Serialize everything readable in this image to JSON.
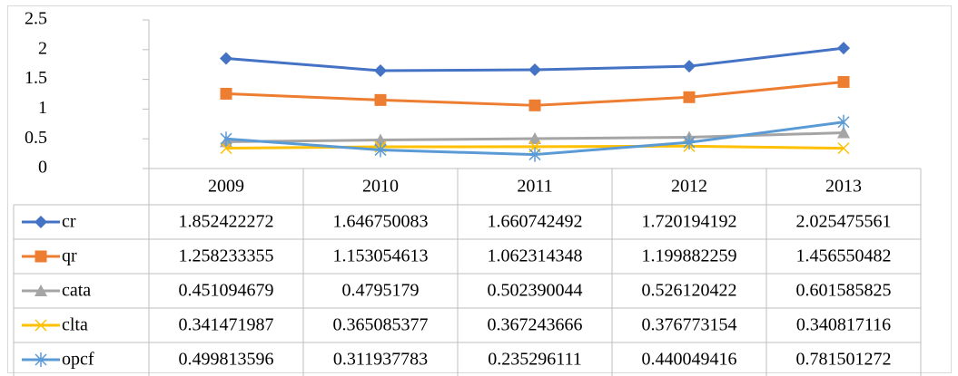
{
  "chart_data": {
    "type": "line",
    "categories": [
      "2009",
      "2010",
      "2011",
      "2012",
      "2013"
    ],
    "series": [
      {
        "name": "cr",
        "color": "#4472c4",
        "marker": "diamond",
        "values": [
          1.852422272,
          1.646750083,
          1.660742492,
          1.720194192,
          2.025475561
        ]
      },
      {
        "name": "qr",
        "color": "#ed7d31",
        "marker": "square",
        "values": [
          1.258233355,
          1.153054613,
          1.062314348,
          1.199882259,
          1.456550482
        ]
      },
      {
        "name": "cata",
        "color": "#a5a5a5",
        "marker": "triangle",
        "values": [
          0.451094679,
          0.4795179,
          0.502390044,
          0.526120422,
          0.601585825
        ]
      },
      {
        "name": "clta",
        "color": "#ffc000",
        "marker": "x",
        "values": [
          0.341471987,
          0.365085377,
          0.367243666,
          0.376773154,
          0.340817116
        ]
      },
      {
        "name": "opcf",
        "color": "#5b9bd5",
        "marker": "star",
        "values": [
          0.499813596,
          0.311937783,
          0.235296111,
          0.440049416,
          0.781501272
        ]
      }
    ],
    "ylim": [
      0,
      2.5
    ],
    "yticks": [
      0,
      0.5,
      1,
      1.5,
      2,
      2.5
    ],
    "data_table": true
  }
}
